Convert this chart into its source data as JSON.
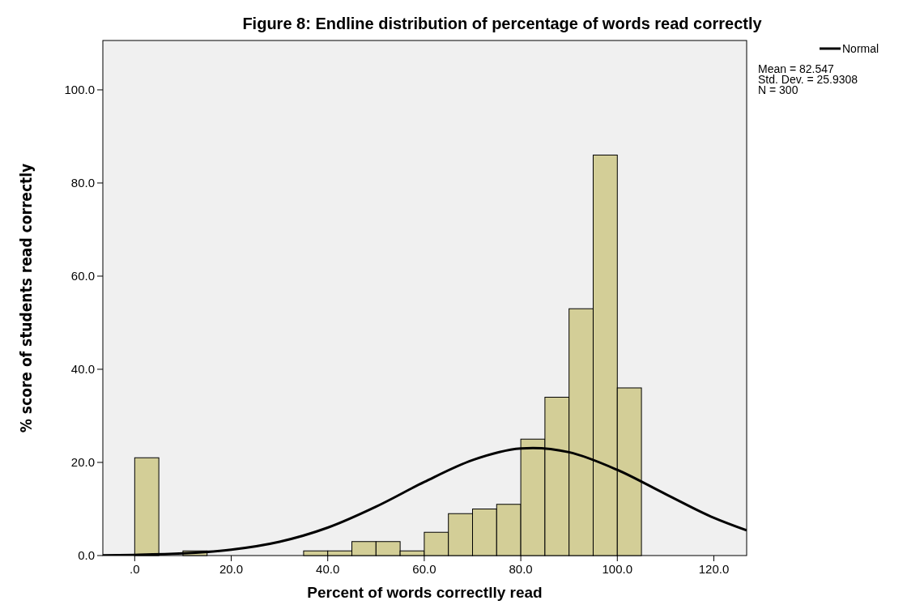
{
  "chart_data": {
    "type": "histogram",
    "title": "Figure 8: Endline distribution of percentage of words read correctly",
    "xlabel": "Percent of words correctlly read",
    "ylabel": "% score of students read correctly",
    "bins": [
      0,
      5,
      10,
      15,
      20,
      25,
      30,
      35,
      40,
      45,
      50,
      55,
      60,
      65,
      70,
      75,
      80,
      85,
      90,
      95,
      100,
      105
    ],
    "values": [
      21,
      0,
      1,
      0,
      0,
      0,
      0,
      1,
      1,
      3,
      3,
      1,
      5,
      9,
      10,
      11,
      25,
      34,
      53,
      86,
      36
    ],
    "color": "#d3ce97",
    "series": [
      {
        "type": "line",
        "name": "Normal",
        "color": "#000000",
        "x": [
          -6.6,
          0,
          10,
          20,
          30,
          40,
          50,
          60,
          70,
          80,
          82.5,
          90,
          100,
          110,
          120,
          126.8
        ],
        "values": [
          0.06,
          0.15,
          0.46,
          1.26,
          2.96,
          6.0,
          10.5,
          15.8,
          20.5,
          23.0,
          23.1,
          22.2,
          18.4,
          13.2,
          8.1,
          5.4
        ]
      }
    ],
    "xlim": [
      -6.6,
      126.8
    ],
    "xticks": [
      {
        "value": 0,
        "label": ".0"
      },
      {
        "value": 20,
        "label": "20.0"
      },
      {
        "value": 40,
        "label": "40.0"
      },
      {
        "value": 60,
        "label": "60.0"
      },
      {
        "value": 80,
        "label": "80.0"
      },
      {
        "value": 100,
        "label": "100.0"
      },
      {
        "value": 120,
        "label": "120.0"
      }
    ],
    "ylim": [
      0,
      110.6
    ],
    "yticks": [
      {
        "value": 0,
        "label": "0.0"
      },
      {
        "value": 20,
        "label": "20.0"
      },
      {
        "value": 40,
        "label": "40.0"
      },
      {
        "value": 60,
        "label": "60.0"
      },
      {
        "value": 80,
        "label": "80.0"
      },
      {
        "value": 100,
        "label": "100.0"
      }
    ],
    "legend": "top right",
    "annotations": [
      "Mean = 82.547",
      "Std. Dev. = 25.9308",
      "N = 300"
    ]
  }
}
